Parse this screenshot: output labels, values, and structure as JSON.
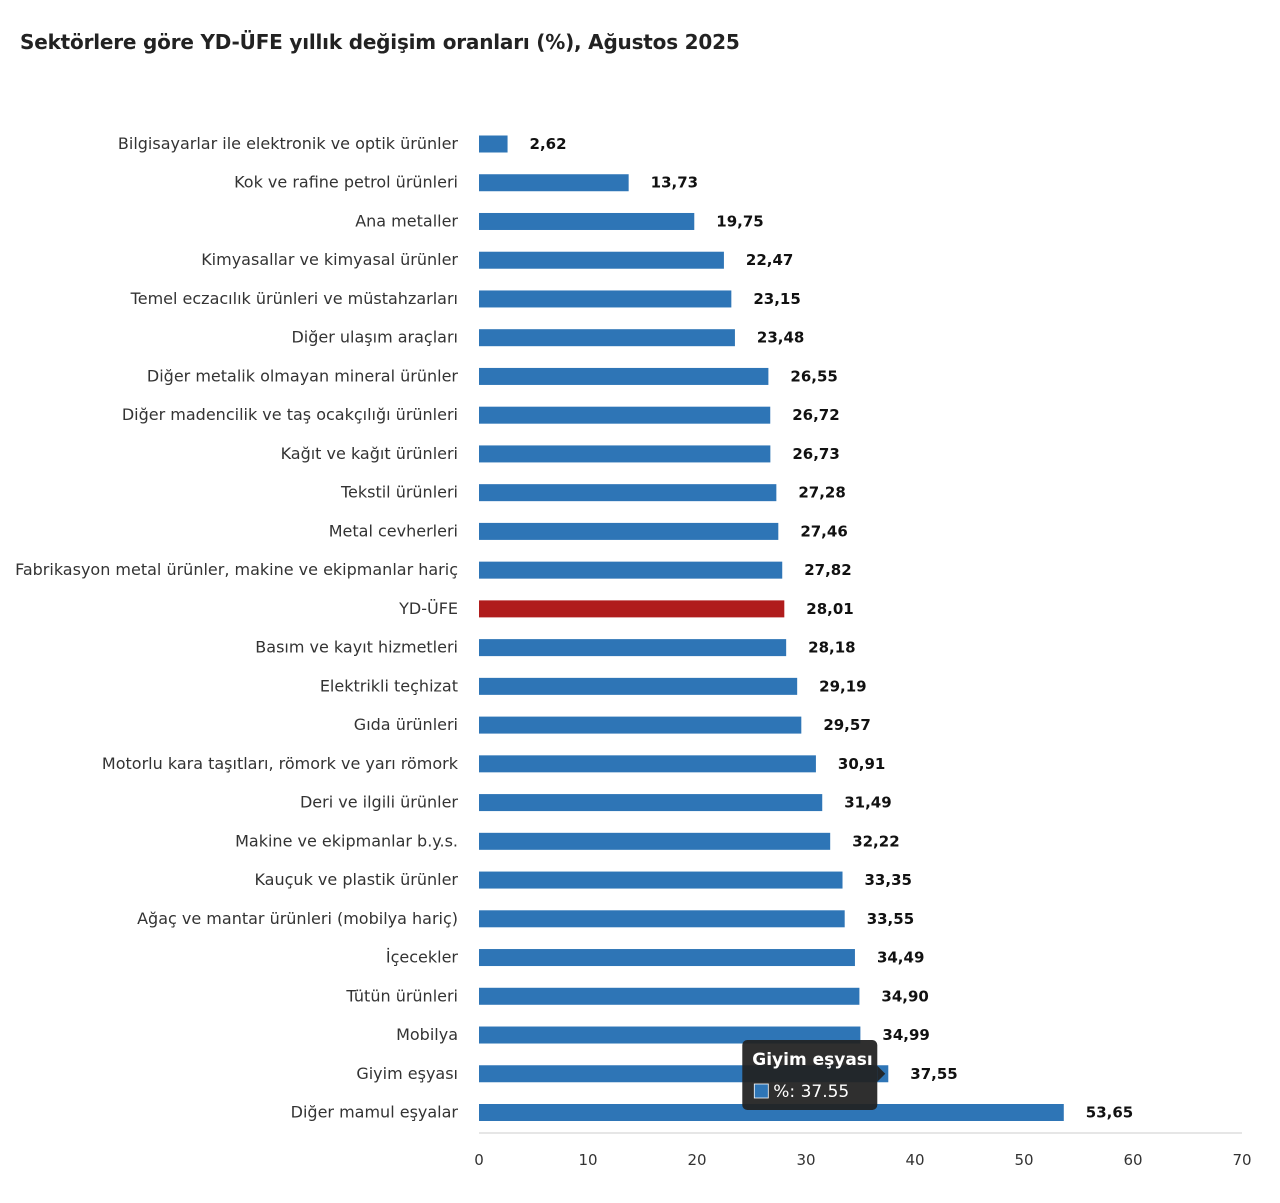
{
  "chart_data": {
    "type": "bar",
    "orientation": "horizontal",
    "title": "Sektörlere göre YD-ÜFE yıllık değişim oranları (%), Ağustos 2025",
    "xlabel": "",
    "ylabel": "",
    "xlim": [
      0,
      70
    ],
    "xticks": [
      0,
      10,
      20,
      30,
      40,
      50,
      60,
      70
    ],
    "grid": false,
    "categories": [
      "Bilgisayarlar ile elektronik ve optik ürünler",
      "Kok ve rafine petrol ürünleri",
      "Ana metaller",
      "Kimyasallar ve kimyasal ürünler",
      "Temel eczacılık ürünleri ve müstahzarları",
      "Diğer ulaşım araçları",
      "Diğer metalik olmayan mineral ürünler",
      "Diğer madencilik ve taş ocakçılığı ürünleri",
      "Kağıt ve kağıt ürünleri",
      "Tekstil ürünleri",
      "Metal cevherleri",
      "Fabrikasyon metal ürünler, makine ve ekipmanlar hariç",
      "YD-ÜFE",
      "Basım ve kayıt hizmetleri",
      "Elektrikli teçhizat",
      "Gıda ürünleri",
      "Motorlu kara taşıtları, römork ve yarı römork",
      "Deri ve ilgili ürünler",
      "Makine ve ekipmanlar b.y.s.",
      "Kauçuk ve plastik ürünler",
      "Ağaç ve mantar ürünleri (mobilya hariç)",
      "İçecekler",
      "Tütün ürünleri",
      "Mobilya",
      "Giyim eşyası",
      "Diğer mamul eşyalar"
    ],
    "values": [
      2.62,
      13.73,
      19.75,
      22.47,
      23.15,
      23.48,
      26.55,
      26.72,
      26.73,
      27.28,
      27.46,
      27.82,
      28.01,
      28.18,
      29.19,
      29.57,
      30.91,
      31.49,
      32.22,
      33.35,
      33.55,
      34.49,
      34.9,
      34.99,
      37.55,
      53.65
    ],
    "value_labels": [
      "2,62",
      "13,73",
      "19,75",
      "22,47",
      "23,15",
      "23,48",
      "26,55",
      "26,72",
      "26,73",
      "27,28",
      "27,46",
      "27,82",
      "28,01",
      "28,18",
      "29,19",
      "29,57",
      "30,91",
      "31,49",
      "32,22",
      "33,35",
      "33,55",
      "34,49",
      "34,90",
      "34,99",
      "37,55",
      "53,65"
    ],
    "highlight_category": "YD-ÜFE",
    "colors": {
      "bar": "#2e75b6",
      "highlight": "#b01c1c",
      "axis": "#cccccc"
    },
    "tooltip": {
      "title": "Giyim eşyası",
      "text": "%: 37.55",
      "category": "Giyim eşyası",
      "background": "#222222",
      "swatch": "#2e75b6"
    }
  }
}
